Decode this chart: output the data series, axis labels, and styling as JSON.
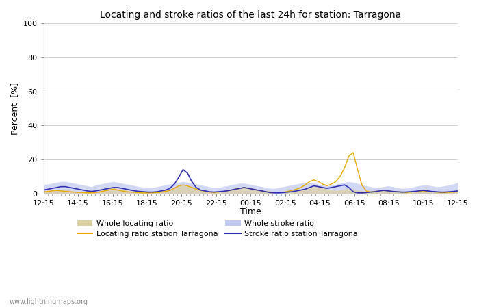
{
  "title": "Locating and stroke ratios of the last 24h for station: Tarragona",
  "ylabel": "Percent  [%]",
  "xlabel": "Time",
  "ylim": [
    0,
    100
  ],
  "yticks": [
    0,
    20,
    40,
    60,
    80,
    100
  ],
  "watermark": "www.lightningmaps.org",
  "xtick_labels": [
    "12:15",
    "14:15",
    "16:15",
    "18:15",
    "20:15",
    "22:15",
    "00:15",
    "02:15",
    "04:15",
    "06:15",
    "08:15",
    "10:15",
    "12:15"
  ],
  "legend": [
    {
      "label": "Whole locating ratio",
      "color": "#ddd0a0",
      "type": "fill"
    },
    {
      "label": "Locating ratio station Tarragona",
      "color": "#e8a800",
      "type": "line"
    },
    {
      "label": "Whole stroke ratio",
      "color": "#c0c8f0",
      "type": "fill"
    },
    {
      "label": "Stroke ratio station Tarragona",
      "color": "#3030b0",
      "type": "line"
    }
  ],
  "whole_locating_ratio": [
    1.2,
    1.5,
    1.8,
    2.2,
    2.5,
    2.2,
    1.8,
    1.5,
    1.2,
    1.0,
    0.8,
    0.6,
    1.0,
    1.5,
    2.5,
    3.0,
    3.5,
    3.0,
    2.5,
    2.0,
    1.8,
    1.5,
    1.2,
    1.0,
    0.8,
    0.8,
    1.0,
    1.5,
    2.0,
    2.5,
    3.5,
    4.5,
    5.0,
    4.5,
    3.5,
    2.5,
    2.0,
    1.5,
    1.2,
    1.0,
    1.2,
    1.5,
    2.0,
    2.5,
    3.0,
    3.5,
    4.0,
    3.5,
    3.0,
    2.5,
    2.0,
    1.5,
    1.2,
    1.0,
    0.8,
    0.8,
    1.0,
    1.5,
    2.0,
    2.5,
    3.0,
    4.0,
    5.0,
    4.5,
    3.5,
    2.5,
    2.0,
    1.8,
    2.0,
    2.5,
    3.0,
    2.5,
    2.0,
    1.5,
    1.2,
    1.0,
    1.2,
    1.5,
    2.0,
    2.0,
    1.8,
    1.5,
    1.2,
    1.0,
    1.2,
    1.5,
    1.8,
    2.0,
    1.8,
    1.5,
    1.2,
    1.0,
    1.0,
    1.2,
    1.5,
    2.0
  ],
  "locating_ratio_station": [
    1.0,
    1.2,
    1.5,
    1.8,
    1.5,
    1.2,
    1.0,
    0.8,
    0.6,
    0.5,
    0.4,
    0.3,
    0.5,
    1.0,
    1.5,
    2.0,
    2.5,
    2.0,
    1.5,
    1.0,
    0.8,
    0.6,
    0.4,
    0.3,
    0.3,
    0.4,
    0.5,
    0.8,
    1.2,
    1.8,
    3.0,
    4.5,
    5.0,
    4.5,
    3.5,
    2.5,
    1.8,
    1.2,
    0.8,
    0.6,
    0.8,
    1.0,
    1.5,
    2.0,
    2.5,
    3.0,
    3.5,
    3.0,
    2.5,
    2.0,
    1.5,
    1.0,
    0.8,
    0.6,
    0.6,
    0.8,
    1.2,
    1.8,
    2.5,
    3.5,
    5.0,
    7.0,
    8.0,
    7.0,
    5.5,
    4.5,
    5.5,
    7.0,
    10.0,
    15.0,
    22.0,
    24.0,
    14.0,
    5.0,
    1.5,
    0.8,
    1.2,
    1.5,
    1.8,
    1.5,
    1.2,
    1.0,
    0.8,
    0.6,
    0.8,
    1.0,
    1.2,
    1.5,
    1.2,
    1.0,
    0.8,
    0.6,
    0.5,
    0.6,
    0.8,
    1.0
  ],
  "whole_stroke_ratio": [
    5.0,
    5.5,
    6.0,
    6.5,
    7.0,
    7.0,
    6.5,
    6.0,
    5.5,
    5.0,
    4.5,
    4.0,
    5.0,
    5.5,
    6.0,
    6.5,
    7.0,
    6.5,
    6.0,
    5.5,
    5.0,
    4.5,
    4.0,
    3.5,
    3.5,
    3.5,
    4.0,
    4.5,
    5.0,
    5.5,
    6.0,
    6.5,
    7.0,
    6.5,
    6.0,
    5.5,
    5.0,
    4.5,
    4.0,
    3.5,
    3.5,
    4.0,
    4.5,
    5.0,
    5.5,
    6.0,
    6.0,
    5.5,
    5.0,
    4.5,
    4.0,
    3.5,
    3.0,
    3.0,
    3.5,
    4.0,
    4.5,
    5.0,
    5.5,
    6.0,
    6.5,
    6.5,
    6.0,
    5.5,
    5.0,
    4.5,
    5.0,
    5.5,
    6.0,
    6.5,
    7.0,
    6.5,
    6.0,
    5.0,
    4.5,
    4.0,
    3.5,
    3.5,
    4.0,
    4.5,
    4.0,
    3.5,
    3.0,
    3.0,
    3.5,
    4.0,
    4.5,
    5.0,
    5.0,
    4.5,
    4.0,
    4.0,
    4.5,
    5.0,
    5.5,
    6.5
  ],
  "stroke_ratio_station": [
    2.0,
    2.5,
    3.0,
    3.5,
    4.0,
    4.0,
    3.5,
    3.0,
    2.5,
    2.0,
    1.5,
    1.2,
    1.5,
    2.0,
    2.5,
    3.0,
    3.5,
    3.5,
    3.0,
    2.5,
    2.0,
    1.5,
    1.2,
    1.0,
    0.8,
    0.8,
    1.0,
    1.5,
    2.0,
    3.0,
    5.5,
    9.5,
    14.0,
    12.0,
    7.0,
    3.5,
    2.0,
    1.5,
    1.0,
    0.8,
    1.0,
    1.2,
    1.5,
    2.0,
    2.5,
    3.0,
    3.5,
    3.0,
    2.5,
    2.0,
    1.5,
    1.0,
    0.5,
    0.3,
    0.3,
    0.5,
    0.8,
    1.0,
    1.5,
    2.0,
    2.5,
    3.5,
    4.5,
    4.0,
    3.5,
    3.0,
    3.5,
    4.0,
    4.5,
    5.0,
    3.5,
    1.0,
    0.3,
    0.3,
    0.5,
    0.8,
    1.0,
    1.5,
    1.8,
    1.5,
    1.2,
    1.0,
    0.8,
    0.8,
    1.0,
    1.2,
    1.5,
    1.8,
    1.5,
    1.2,
    1.0,
    0.8,
    0.8,
    1.0,
    1.2,
    1.5
  ]
}
